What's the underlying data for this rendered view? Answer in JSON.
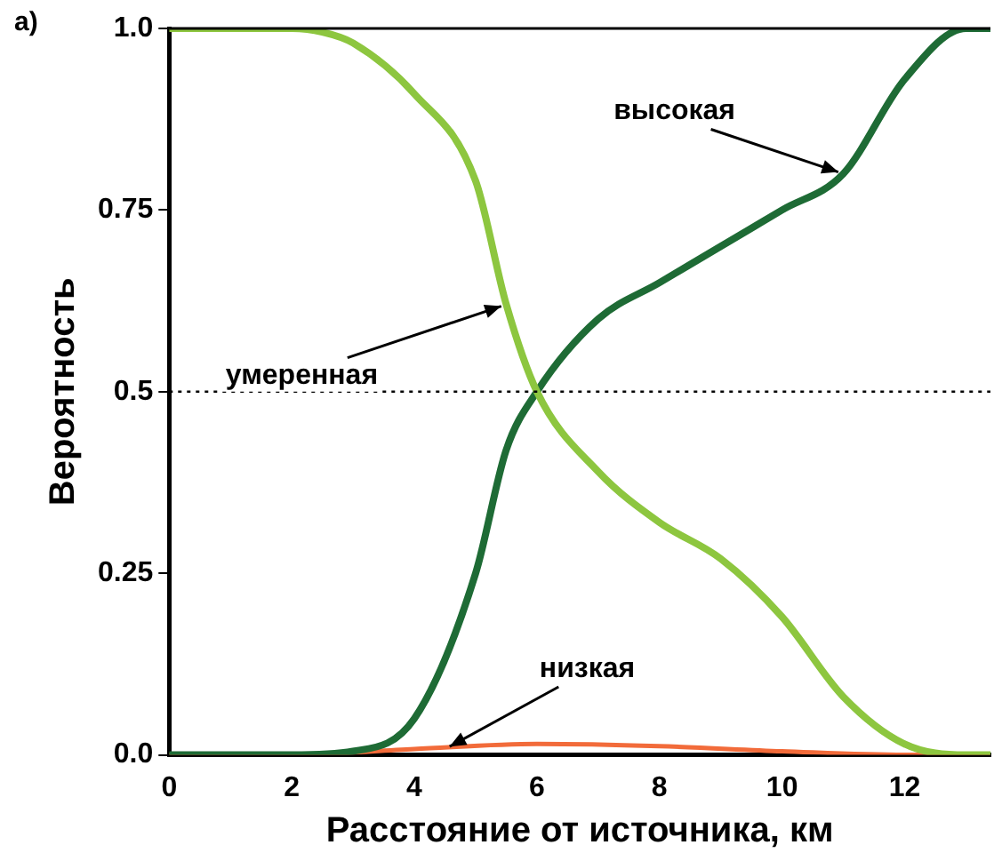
{
  "chart_data": {
    "type": "line",
    "xlabel": "Расстояние от источника, км",
    "ylabel": "Вероятность",
    "xlim": [
      0,
      13.4
    ],
    "xticks": [
      0,
      2,
      4,
      6,
      8,
      10,
      12
    ],
    "ylim": [
      0,
      1
    ],
    "yticks": [
      {
        "value": 0,
        "label": "0.0"
      },
      0.25,
      0.5,
      0.75,
      {
        "value": 1,
        "label": "1.0"
      }
    ],
    "grid": false,
    "legend": false,
    "marker": "none",
    "line_style": "solid",
    "series": [
      {
        "color": "#8dc63f",
        "x": [
          0,
          1,
          2,
          2.5,
          3,
          4,
          5,
          5.5,
          6,
          7,
          8,
          9,
          10,
          11,
          12,
          13,
          13.4
        ],
        "values": [
          1,
          1,
          1,
          0.995,
          0.98,
          0.91,
          0.79,
          0.62,
          0.5,
          0.39,
          0.32,
          0.27,
          0.19,
          0.08,
          0.015,
          0,
          0
        ]
      },
      {
        "color": "#1e6b35",
        "x": [
          0,
          1,
          2,
          3,
          4,
          5,
          5.5,
          6,
          7,
          8,
          9,
          10,
          11,
          12,
          13,
          13.4
        ],
        "values": [
          0,
          0,
          0,
          0.005,
          0.05,
          0.25,
          0.42,
          0.5,
          0.6,
          0.65,
          0.7,
          0.75,
          0.8,
          0.93,
          1,
          1
        ]
      },
      {
        "color": "#f26b3a",
        "x": [
          0,
          2,
          4,
          6,
          8,
          10,
          12,
          13.4
        ],
        "values": [
          0,
          0,
          0.008,
          0.015,
          0.012,
          0.005,
          0,
          0
        ]
      }
    ],
    "ref_lines": [
      {
        "axis": "y",
        "value": 0.5,
        "line_style": "dotted",
        "color": "#000000"
      }
    ],
    "annotations": [
      "a)",
      {
        "text": "высокая",
        "x": 11,
        "y": 0.8
      },
      {
        "text": "умеренная",
        "x": 5.5,
        "y": 0.62
      },
      {
        "text": "низкая",
        "x": 4.5,
        "y": 0.008
      }
    ]
  }
}
